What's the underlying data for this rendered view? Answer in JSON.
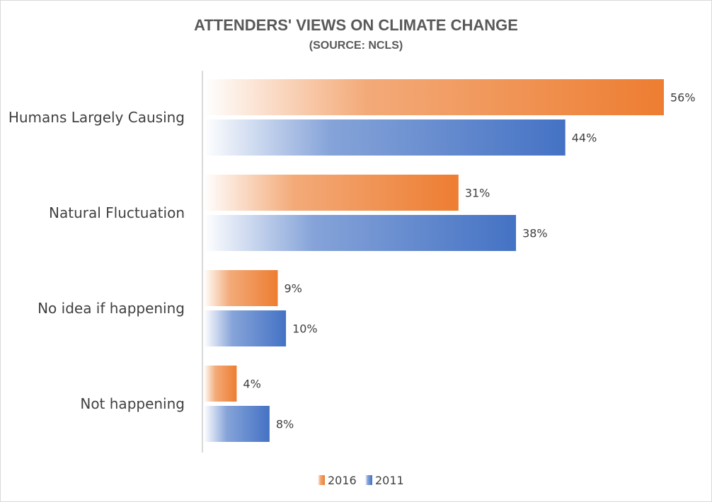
{
  "chart_data": {
    "type": "bar",
    "orientation": "horizontal",
    "title": "ATTENDERS' VIEWS ON CLIMATE CHANGE",
    "subtitle": "(SOURCE: NCLS)",
    "categories": [
      "Humans Largely Causing",
      "Natural Fluctuation",
      "No idea if happening",
      "Not happening"
    ],
    "series": [
      {
        "name": "2016",
        "values": [
          56,
          31,
          9,
          4
        ],
        "labels": [
          "56%",
          "31%",
          "9%",
          "4%"
        ],
        "color": "#ed7d31"
      },
      {
        "name": "2011",
        "values": [
          44,
          38,
          10,
          8
        ],
        "labels": [
          "44%",
          "38%",
          "10%",
          "8%"
        ],
        "color": "#4472c4"
      }
    ],
    "xlim": [
      0,
      60
    ],
    "grid": false,
    "legend": "bottom"
  }
}
